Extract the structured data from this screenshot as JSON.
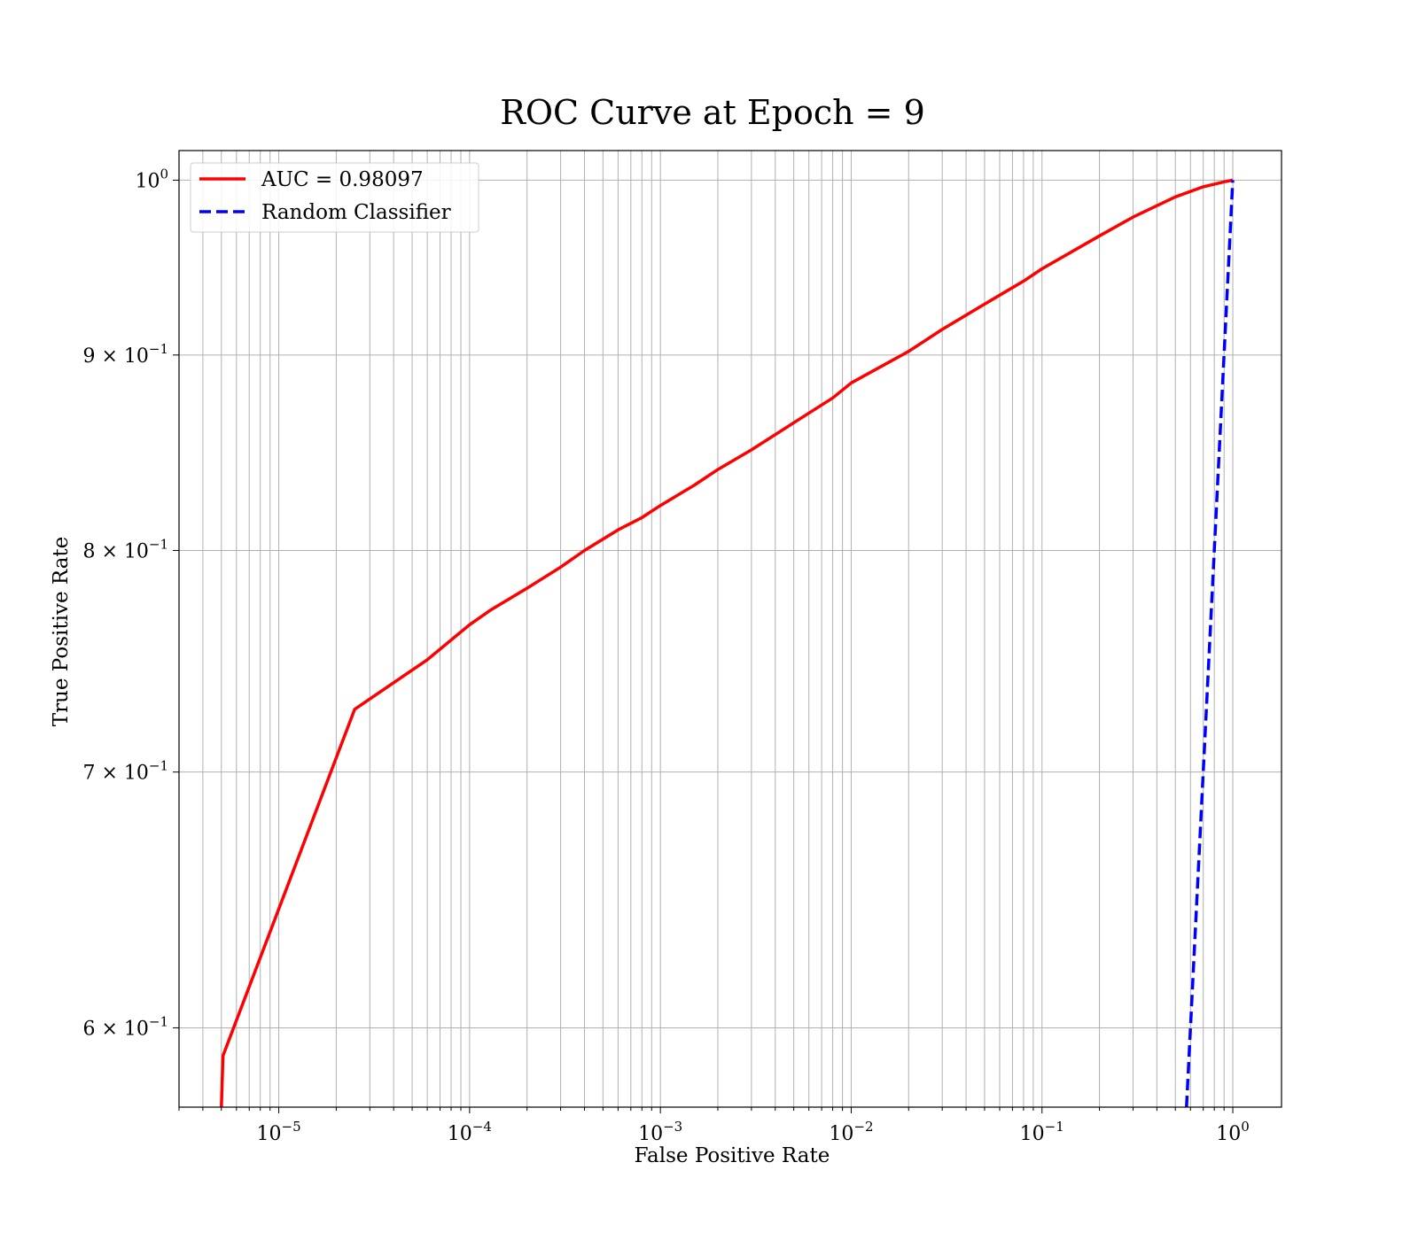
{
  "chart_data": {
    "type": "line",
    "title": "ROC Curve at Epoch = 9",
    "xlabel": "False Positive Rate",
    "ylabel": "True Positive Rate",
    "xscale": "log",
    "yscale": "log",
    "xlim": [
      3e-06,
      1.8
    ],
    "ylim": [
      0.572,
      1.018
    ],
    "grid": true,
    "legend_position": "top-left",
    "x_ticks": [
      {
        "value": 1e-05,
        "base": "10",
        "exp": "−5"
      },
      {
        "value": 0.0001,
        "base": "10",
        "exp": "−4"
      },
      {
        "value": 0.001,
        "base": "10",
        "exp": "−3"
      },
      {
        "value": 0.01,
        "base": "10",
        "exp": "−2"
      },
      {
        "value": 0.1,
        "base": "10",
        "exp": "−1"
      },
      {
        "value": 1,
        "base": "10",
        "exp": "0"
      }
    ],
    "y_ticks": [
      {
        "value": 0.6,
        "base": "6 × 10",
        "exp": "−1"
      },
      {
        "value": 0.7,
        "base": "7 × 10",
        "exp": "−1"
      },
      {
        "value": 0.8,
        "base": "8 × 10",
        "exp": "−1"
      },
      {
        "value": 0.9,
        "base": "9 × 10",
        "exp": "−1"
      },
      {
        "value": 1.0,
        "base": "10",
        "exp": "0"
      }
    ],
    "series": [
      {
        "name": "AUC = 0.98097",
        "color": "#ff0000",
        "dash": "solid",
        "x": [
          5e-06,
          5.1e-06,
          2.5e-05,
          6e-05,
          0.0001,
          0.00013,
          0.0002,
          0.0003,
          0.0004,
          0.0006,
          0.0008,
          0.001,
          0.0015,
          0.002,
          0.003,
          0.005,
          0.008,
          0.01,
          0.02,
          0.03,
          0.05,
          0.08,
          0.1,
          0.2,
          0.3,
          0.5,
          0.7,
          0.9,
          1.0
        ],
        "y": [
          0.572,
          0.59,
          0.727,
          0.749,
          0.765,
          0.772,
          0.782,
          0.792,
          0.8,
          0.81,
          0.816,
          0.822,
          0.832,
          0.84,
          0.85,
          0.864,
          0.877,
          0.885,
          0.902,
          0.914,
          0.928,
          0.941,
          0.948,
          0.967,
          0.978,
          0.99,
          0.996,
          0.999,
          1.0
        ]
      },
      {
        "name": "Random Classifier",
        "color": "#0000ff",
        "dash": "dashed",
        "x": [
          0.572,
          1.0
        ],
        "y": [
          0.572,
          1.0
        ]
      }
    ]
  }
}
